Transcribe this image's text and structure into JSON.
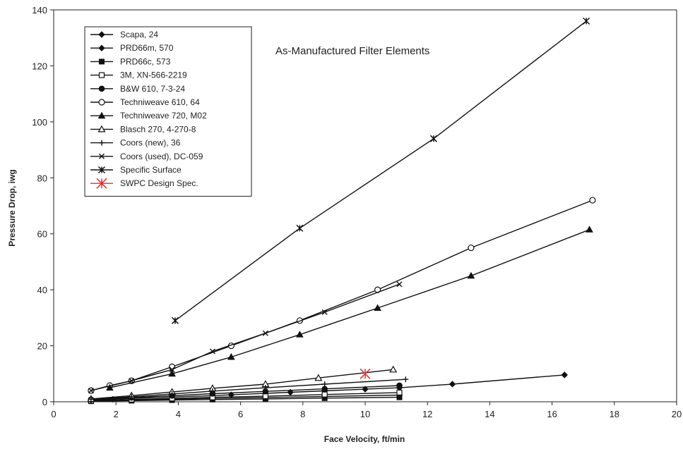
{
  "chart_data": {
    "type": "line",
    "title": "",
    "annotation": "As-Manufactured Filter Elements",
    "xlabel": "Face Velocity, ft/min",
    "ylabel": "Pressure Drop, iwg",
    "xlim": [
      0,
      20
    ],
    "ylim": [
      0,
      140
    ],
    "xticks": [
      0,
      2,
      4,
      6,
      8,
      10,
      12,
      14,
      16,
      18,
      20
    ],
    "yticks": [
      0,
      20,
      40,
      60,
      80,
      100,
      120,
      140
    ],
    "grid": false,
    "legend_position": "top-left",
    "series": [
      {
        "name": "Scapa, 24",
        "marker": "diamond-filled",
        "color": "#111111",
        "points": [
          [
            1.2,
            0.6
          ],
          [
            1.9,
            0.9
          ],
          [
            2.5,
            1.2
          ],
          [
            3.8,
            1.7
          ],
          [
            5.1,
            2.2
          ],
          [
            5.7,
            2.5
          ],
          [
            6.8,
            3.0
          ],
          [
            7.6,
            3.4
          ],
          [
            8.7,
            3.9
          ],
          [
            10.0,
            4.5
          ],
          [
            11.1,
            5.0
          ],
          [
            12.8,
            6.3
          ],
          [
            16.4,
            9.6
          ]
        ]
      },
      {
        "name": "PRD66m, 570",
        "marker": "diamond-filled",
        "color": "#111111",
        "points": [
          [
            1.2,
            0.3
          ],
          [
            2.5,
            0.6
          ],
          [
            3.8,
            0.9
          ],
          [
            5.1,
            1.2
          ],
          [
            6.8,
            1.5
          ],
          [
            8.7,
            1.9
          ],
          [
            11.1,
            2.4
          ]
        ]
      },
      {
        "name": "PRD66c, 573",
        "marker": "square-filled",
        "color": "#111111",
        "points": [
          [
            1.2,
            0.2
          ],
          [
            2.5,
            0.4
          ],
          [
            3.8,
            0.6
          ],
          [
            5.1,
            0.8
          ],
          [
            6.8,
            1.0
          ],
          [
            8.7,
            1.3
          ],
          [
            11.1,
            1.6
          ]
        ]
      },
      {
        "name": "3M, XN-566-2219",
        "marker": "square-open",
        "color": "#111111",
        "points": [
          [
            1.2,
            0.4
          ],
          [
            2.5,
            0.8
          ],
          [
            3.8,
            1.2
          ],
          [
            5.1,
            1.6
          ],
          [
            6.8,
            2.0
          ],
          [
            8.7,
            2.6
          ],
          [
            11.1,
            3.3
          ]
        ]
      },
      {
        "name": "B&W 610, 7-3-24",
        "marker": "circle-filled",
        "color": "#111111",
        "points": [
          [
            1.2,
            0.8
          ],
          [
            2.5,
            1.5
          ],
          [
            3.8,
            2.2
          ],
          [
            5.1,
            2.9
          ],
          [
            6.8,
            3.7
          ],
          [
            8.7,
            4.6
          ],
          [
            11.1,
            5.8
          ]
        ]
      },
      {
        "name": "Techniweave 610, 64",
        "marker": "circle-open",
        "color": "#111111",
        "points": [
          [
            1.2,
            4.0
          ],
          [
            1.8,
            5.8
          ],
          [
            2.5,
            7.5
          ],
          [
            3.8,
            12.5
          ],
          [
            5.7,
            20.0
          ],
          [
            7.9,
            29.0
          ],
          [
            10.4,
            40.0
          ],
          [
            13.4,
            55.0
          ],
          [
            17.3,
            72.0
          ]
        ]
      },
      {
        "name": "Techniweave 720, M02",
        "marker": "triangle-filled",
        "color": "#111111",
        "points": [
          [
            1.8,
            5.0
          ],
          [
            3.8,
            10.0
          ],
          [
            5.7,
            16.0
          ],
          [
            7.9,
            24.0
          ],
          [
            10.4,
            33.5
          ],
          [
            13.4,
            45.0
          ],
          [
            17.2,
            61.5
          ]
        ]
      },
      {
        "name": "Blasch 270, 4-270-8",
        "marker": "triangle-open",
        "color": "#111111",
        "points": [
          [
            1.2,
            1.0
          ],
          [
            2.5,
            2.2
          ],
          [
            3.8,
            3.5
          ],
          [
            5.1,
            4.8
          ],
          [
            6.8,
            6.3
          ],
          [
            8.5,
            8.5
          ],
          [
            10.9,
            11.5
          ]
        ]
      },
      {
        "name": "Coors (new), 36",
        "marker": "plus",
        "color": "#111111",
        "points": [
          [
            1.2,
            0.9
          ],
          [
            2.5,
            1.8
          ],
          [
            3.8,
            2.8
          ],
          [
            5.1,
            3.8
          ],
          [
            6.8,
            5.0
          ],
          [
            8.7,
            6.3
          ],
          [
            11.3,
            8.0
          ]
        ]
      },
      {
        "name": "Coors (used), DC-059",
        "marker": "x",
        "color": "#111111",
        "points": [
          [
            1.2,
            4.0
          ],
          [
            2.5,
            7.5
          ],
          [
            3.8,
            11.5
          ],
          [
            5.1,
            18.0
          ],
          [
            6.8,
            24.5
          ],
          [
            8.7,
            32.0
          ],
          [
            11.1,
            42.0
          ]
        ]
      },
      {
        "name": "Specific Surface",
        "marker": "star",
        "color": "#111111",
        "points": [
          [
            3.9,
            29.0
          ],
          [
            7.9,
            62.0
          ],
          [
            12.2,
            94.0
          ],
          [
            17.1,
            136.0
          ]
        ]
      },
      {
        "name": "SWPC Design Spec.",
        "marker": "star",
        "color": "#e03030",
        "line": false,
        "points": [
          [
            10.0,
            10.0
          ]
        ]
      }
    ]
  }
}
